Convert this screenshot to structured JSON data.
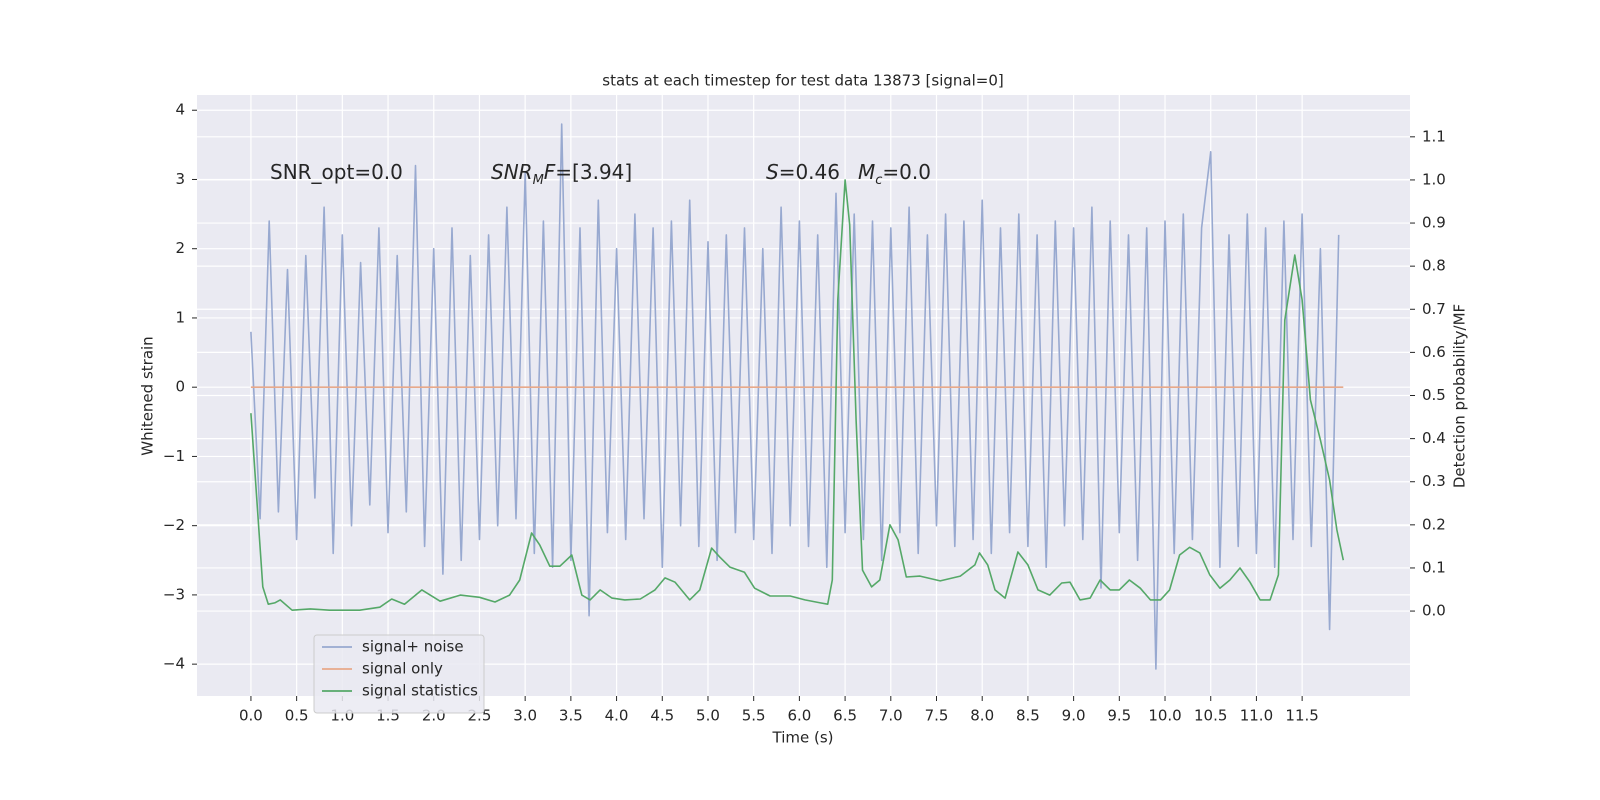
{
  "chart_data": {
    "type": "line",
    "title": "stats at each timestep for test data 13873 [signal=0]",
    "xlabel": "Time (s)",
    "ylabel": "Whitened strain",
    "y2label": "Detection probability/MF",
    "annotations": [
      [
        {
          "text": "SNR_opt=0.0"
        }
      ],
      [
        {
          "text": "SNR",
          "italic": true
        },
        {
          "text": "M",
          "italic": true,
          "sub": true
        },
        {
          "text": "F",
          "italic": true
        },
        {
          "text": "=[3.94]"
        }
      ],
      [
        {
          "text": "S",
          "italic": true
        },
        {
          "text": "=0.46"
        }
      ],
      [
        {
          "text": "M",
          "italic": true
        },
        {
          "text": "c",
          "italic": true,
          "sub": true
        },
        {
          "text": "=0.0"
        }
      ]
    ],
    "xlim": [
      -0.59,
      12.68
    ],
    "ylim": [
      -4.46,
      4.22
    ],
    "y2lim": [
      -0.197,
      1.197
    ],
    "xticks": [
      {
        "value": 0,
        "label": "0.0"
      },
      0.5,
      {
        "value": 1,
        "label": "1.0"
      },
      1.5,
      {
        "value": 2,
        "label": "2.0"
      },
      2.5,
      {
        "value": 3,
        "label": "3.0"
      },
      3.5,
      {
        "value": 4,
        "label": "4.0"
      },
      4.5,
      {
        "value": 5,
        "label": "5.0"
      },
      5.5,
      {
        "value": 6,
        "label": "6.0"
      },
      6.5,
      {
        "value": 7,
        "label": "7.0"
      },
      7.5,
      {
        "value": 8,
        "label": "8.0"
      },
      8.5,
      {
        "value": 9,
        "label": "9.0"
      },
      9.5,
      {
        "value": 10,
        "label": "10.0"
      },
      10.5,
      {
        "value": 11,
        "label": "11.0"
      },
      11.5
    ],
    "yticks": [
      {
        "value": -4,
        "label": "−4"
      },
      {
        "value": -3,
        "label": "−3"
      },
      {
        "value": -2,
        "label": "−2"
      },
      {
        "value": -1,
        "label": "−1"
      },
      0,
      1,
      2,
      3,
      4
    ],
    "y2ticks": [
      {
        "value": 0,
        "label": "0.0"
      },
      0.1,
      0.2,
      0.3,
      0.4,
      0.5,
      0.6,
      0.7,
      0.8,
      0.9,
      {
        "value": 1,
        "label": "1.0"
      },
      1.1
    ],
    "grid": true,
    "legend": "lower left",
    "series": [
      {
        "name": "signal+ noise",
        "color": "#98a9d0",
        "x": [
          0,
          0.1,
          0.2,
          0.3,
          0.4,
          0.5,
          0.6,
          0.7,
          0.8,
          0.9,
          1,
          1.1,
          1.2,
          1.3,
          1.4,
          1.5,
          1.6,
          1.7,
          1.8,
          1.9,
          2,
          2.1,
          2.2,
          2.3,
          2.4,
          2.5,
          2.6,
          2.7,
          2.8,
          2.9,
          3,
          3.1,
          3.2,
          3.3,
          3.4,
          3.5,
          3.6,
          3.7,
          3.8,
          3.9,
          4,
          4.1,
          4.2,
          4.3,
          4.4,
          4.5,
          4.6,
          4.7,
          4.8,
          4.9,
          5,
          5.1,
          5.2,
          5.3,
          5.4,
          5.5,
          5.6,
          5.7,
          5.8,
          5.9,
          6,
          6.1,
          6.2,
          6.3,
          6.4,
          6.5,
          6.6,
          6.7,
          6.8,
          6.9,
          7,
          7.1,
          7.2,
          7.3,
          7.4,
          7.5,
          7.6,
          7.7,
          7.8,
          7.9,
          8,
          8.1,
          8.2,
          8.3,
          8.4,
          8.5,
          8.6,
          8.7,
          8.8,
          8.9,
          9,
          9.1,
          9.2,
          9.3,
          9.4,
          9.5,
          9.6,
          9.7,
          9.8,
          9.9,
          10,
          10.1,
          10.2,
          10.3,
          10.4,
          10.5,
          10.6,
          10.7,
          10.8,
          10.9,
          11,
          11.1,
          11.2,
          11.3,
          11.4,
          11.5,
          11.6,
          11.7,
          11.8,
          11.9
        ],
        "values": [
          0.8,
          -1.9,
          2.4,
          -1.8,
          1.7,
          -2.2,
          1.9,
          -1.6,
          2.6,
          -2.4,
          2.2,
          -2.0,
          1.8,
          -1.7,
          2.3,
          -2.1,
          1.9,
          -1.8,
          3.2,
          -2.3,
          2.0,
          -2.7,
          2.3,
          -2.5,
          1.9,
          -2.2,
          2.2,
          -2.0,
          2.6,
          -1.9,
          3.1,
          -2.4,
          2.4,
          -2.6,
          3.8,
          -2.5,
          2.3,
          -3.3,
          2.7,
          -2.1,
          2.0,
          -2.2,
          2.5,
          -1.9,
          2.3,
          -2.6,
          2.4,
          -2.0,
          2.7,
          -2.3,
          2.1,
          -2.5,
          2.2,
          -2.1,
          2.3,
          -2.2,
          2.0,
          -2.4,
          2.6,
          -2.0,
          2.4,
          -2.3,
          2.2,
          -2.6,
          2.8,
          -2.1,
          2.5,
          -2.2,
          2.4,
          -2.5,
          2.3,
          -2.1,
          2.6,
          -2.4,
          2.2,
          -2.0,
          2.5,
          -2.3,
          2.4,
          -2.2,
          2.7,
          -2.4,
          2.3,
          -2.1,
          2.5,
          -2.3,
          2.2,
          -2.6,
          2.4,
          -2.0,
          2.3,
          -2.2,
          2.6,
          -2.9,
          2.4,
          -2.1,
          2.2,
          -2.5,
          2.3,
          -4.07,
          2.4,
          -2.4,
          2.5,
          -2.2,
          2.3,
          3.4,
          -2.6,
          2.2,
          -2.3,
          2.5,
          -2.4,
          2.3,
          -2.6,
          2.4,
          -2.2,
          2.5,
          -2.3,
          2.0,
          -3.5,
          2.2
        ]
      },
      {
        "name": "signal only",
        "color": "#e8a98a",
        "x": [
          0,
          11.95
        ],
        "values": [
          0,
          0
        ]
      },
      {
        "name": "signal statistics",
        "color": "#55a868",
        "axis": "y2",
        "x": [
          0,
          0.13,
          0.19,
          0.26,
          0.32,
          0.45,
          0.65,
          0.86,
          1.19,
          1.41,
          1.54,
          1.68,
          1.87,
          2.07,
          2.29,
          2.5,
          2.67,
          2.83,
          2.94,
          3.07,
          3.16,
          3.27,
          3.38,
          3.51,
          3.62,
          3.71,
          3.82,
          3.95,
          4.09,
          4.26,
          4.42,
          4.53,
          4.64,
          4.8,
          4.91,
          5.04,
          5.13,
          5.24,
          5.4,
          5.51,
          5.68,
          5.9,
          6.06,
          6.23,
          6.31,
          6.36,
          6.42,
          6.5,
          6.55,
          6.62,
          6.69,
          6.79,
          6.88,
          6.99,
          7.08,
          7.17,
          7.32,
          7.54,
          7.76,
          7.92,
          7.97,
          8.06,
          8.14,
          8.25,
          8.39,
          8.5,
          8.61,
          8.74,
          8.87,
          8.96,
          9.07,
          9.18,
          9.29,
          9.4,
          9.5,
          9.61,
          9.73,
          9.84,
          9.95,
          10.05,
          10.16,
          10.27,
          10.38,
          10.49,
          10.6,
          10.71,
          10.82,
          10.93,
          11.04,
          11.15,
          11.24,
          11.31,
          11.42,
          11.5,
          11.59,
          11.7,
          11.8,
          11.88,
          11.95
        ],
        "values": [
          0.459,
          0.056,
          0.016,
          0.019,
          0.026,
          0.002,
          0.005,
          0.002,
          0.002,
          0.009,
          0.028,
          0.016,
          0.049,
          0.023,
          0.037,
          0.032,
          0.021,
          0.037,
          0.072,
          0.181,
          0.153,
          0.104,
          0.104,
          0.13,
          0.037,
          0.026,
          0.049,
          0.03,
          0.026,
          0.028,
          0.049,
          0.077,
          0.067,
          0.026,
          0.049,
          0.146,
          0.125,
          0.102,
          0.09,
          0.053,
          0.035,
          0.035,
          0.026,
          0.019,
          0.016,
          0.072,
          0.722,
          1.0,
          0.896,
          0.443,
          0.095,
          0.056,
          0.072,
          0.2,
          0.165,
          0.079,
          0.081,
          0.07,
          0.081,
          0.107,
          0.135,
          0.107,
          0.049,
          0.03,
          0.137,
          0.107,
          0.049,
          0.037,
          0.065,
          0.067,
          0.026,
          0.03,
          0.072,
          0.049,
          0.049,
          0.072,
          0.053,
          0.026,
          0.026,
          0.049,
          0.13,
          0.148,
          0.135,
          0.084,
          0.053,
          0.072,
          0.1,
          0.067,
          0.026,
          0.026,
          0.084,
          0.675,
          0.826,
          0.722,
          0.49,
          0.397,
          0.304,
          0.188,
          0.118
        ]
      }
    ]
  }
}
